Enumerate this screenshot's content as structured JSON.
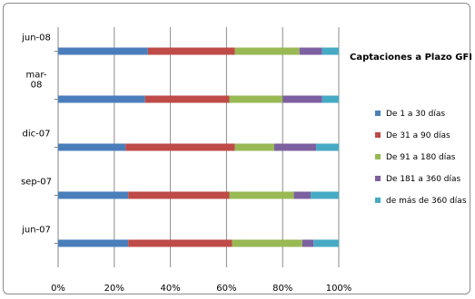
{
  "chart_data": {
    "type": "bar",
    "orientation": "horizontal",
    "stacked": "percent",
    "title": "Captaciones a Plazo GFB",
    "categories": [
      "jun-07",
      "sep-07",
      "dic-07",
      "mar-08",
      "jun-08"
    ],
    "category_labels": [
      [
        "jun-07"
      ],
      [
        "sep-07"
      ],
      [
        "dic-07"
      ],
      [
        "mar-",
        "08"
      ],
      [
        "jun-08"
      ]
    ],
    "series": [
      {
        "name": "De 1 a 30 días",
        "color": "#4a7ebb",
        "values": [
          25,
          25,
          24,
          31,
          32
        ]
      },
      {
        "name": "De 31 a 90 días",
        "color": "#be4b48",
        "values": [
          37,
          36,
          39,
          30,
          31
        ]
      },
      {
        "name": "De 91 a 180 días",
        "color": "#98b954",
        "values": [
          25,
          23,
          14,
          19,
          23
        ]
      },
      {
        "name": "De 181 a 360 días",
        "color": "#7d60a0",
        "values": [
          4,
          6,
          15,
          14,
          8
        ]
      },
      {
        "name": "de más de 360 días",
        "color": "#46aac5",
        "values": [
          9,
          10,
          8,
          6,
          6
        ]
      }
    ],
    "x_ticks": [
      "0%",
      "20%",
      "40%",
      "60%",
      "80%",
      "100%"
    ],
    "xlim": [
      0,
      100
    ],
    "grid": true,
    "legend_position": "right"
  }
}
